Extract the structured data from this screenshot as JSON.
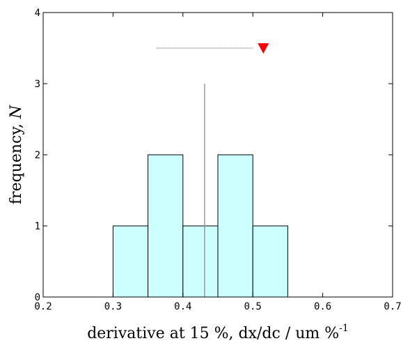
{
  "chart_data": {
    "type": "histogram",
    "xlabel": "derivative at 15 %, dx/dc / um %",
    "xlabel_superscript": "-1",
    "ylabel_text": "frequency, ",
    "ylabel_var": "N",
    "xlim": [
      0.2,
      0.7
    ],
    "ylim": [
      0,
      4
    ],
    "xticks": [
      "0.2",
      "0.3",
      "0.4",
      "0.5",
      "0.6",
      "0.7"
    ],
    "yticks": [
      "0",
      "1",
      "2",
      "3",
      "4"
    ],
    "bins": [
      {
        "x0": 0.3,
        "x1": 0.35,
        "count": 1
      },
      {
        "x0": 0.35,
        "x1": 0.4,
        "count": 2
      },
      {
        "x0": 0.4,
        "x1": 0.45,
        "count": 1
      },
      {
        "x0": 0.45,
        "x1": 0.5,
        "count": 2
      },
      {
        "x0": 0.5,
        "x1": 0.55,
        "count": 1
      }
    ],
    "mean_line": {
      "x": 0.431,
      "y_top": 3
    },
    "range_line": {
      "x0": 0.362,
      "x1": 0.5,
      "y": 3.5
    },
    "marker": {
      "x": 0.515,
      "y": 3.5,
      "shape": "triangle-down",
      "color": "#ff0000"
    },
    "colors": {
      "bar_fill": "#ccffff",
      "bar_stroke": "#000000",
      "mean_line": "#999999",
      "range_line": "#555555"
    }
  }
}
